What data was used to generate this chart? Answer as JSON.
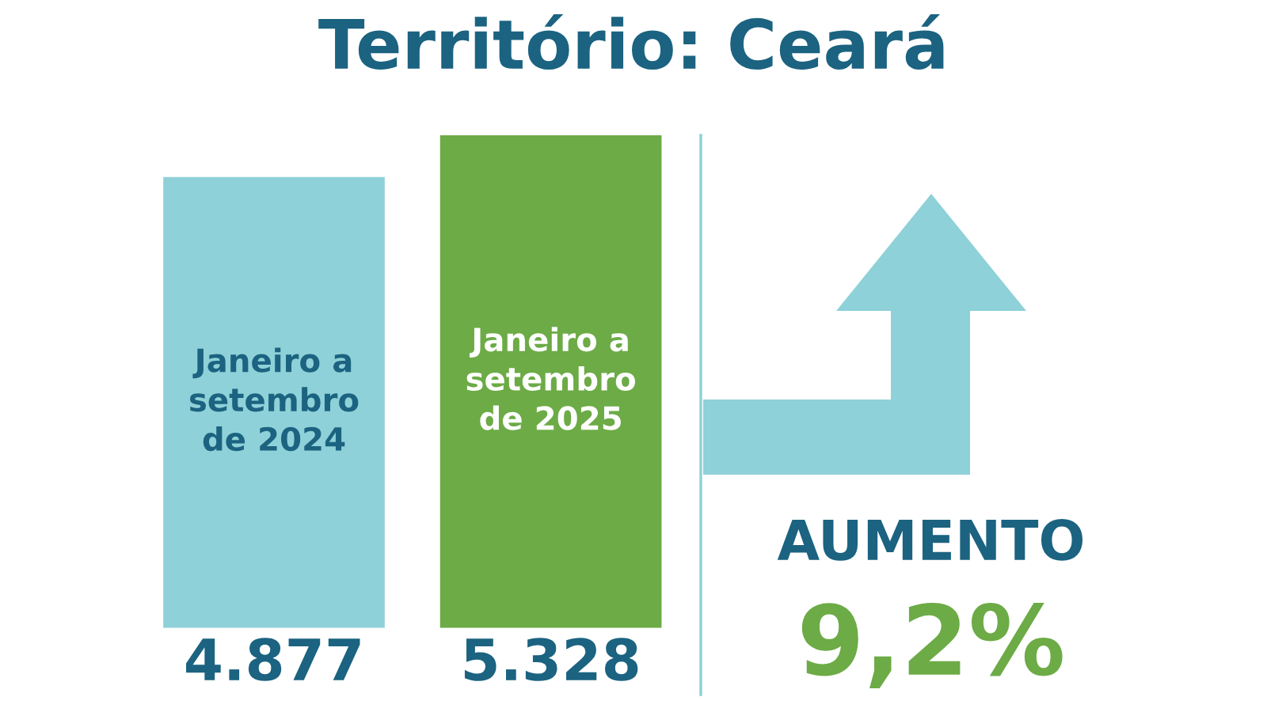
{
  "chart_data": {
    "type": "bar",
    "title": "Território: Ceará",
    "categories": [
      "Janeiro a\nsetembro\nde 2024",
      "Janeiro a\nsetembro\nde 2025"
    ],
    "values": [
      4877,
      5328
    ],
    "colors": [
      "#8fd1d8",
      "#6cab46"
    ],
    "value_labels": [
      "4.877",
      "5.328"
    ],
    "annotations": [
      "AUMENTO",
      "9,2%"
    ],
    "tick_labels": false
  }
}
